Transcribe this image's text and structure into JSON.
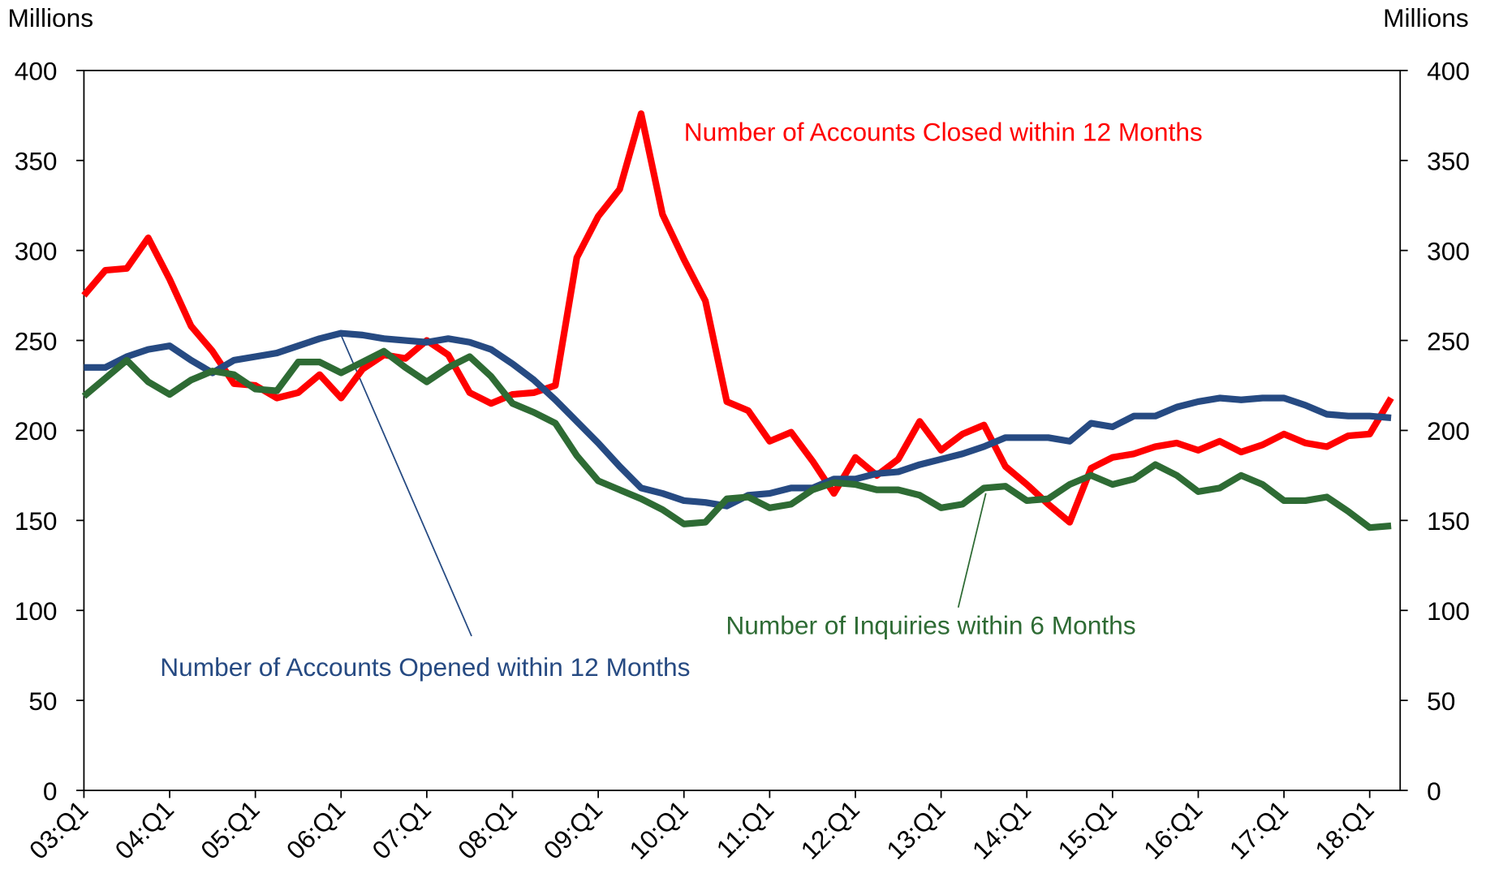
{
  "chart_data": {
    "type": "line",
    "ylabel": "Millions",
    "y2label": "Millions",
    "categories": [
      "03:Q1",
      null,
      null,
      null,
      "04:Q1",
      null,
      null,
      null,
      "05:Q1",
      null,
      null,
      null,
      "06:Q1",
      null,
      null,
      null,
      "07:Q1",
      null,
      null,
      null,
      "08:Q1",
      null,
      null,
      null,
      "09:Q1",
      null,
      null,
      null,
      "10:Q1",
      null,
      null,
      null,
      "11:Q1",
      null,
      null,
      null,
      "12:Q1",
      null,
      null,
      null,
      "13:Q1",
      null,
      null,
      null,
      "14:Q1",
      null,
      null,
      null,
      "15:Q1",
      null,
      null,
      null,
      "16:Q1",
      null,
      null,
      null,
      "17:Q1",
      null,
      null,
      null,
      "18:Q1",
      null
    ],
    "series": [
      {
        "name": "Number of Accounts Closed within 12 Months",
        "color": "#ff0000",
        "values": [
          275,
          289,
          290,
          307,
          284,
          258,
          244,
          226,
          225,
          218,
          221,
          231,
          218,
          234,
          242,
          240,
          250,
          242,
          221,
          215,
          220,
          221,
          225,
          296,
          319,
          334,
          376,
          320,
          295,
          272,
          216,
          211,
          194,
          199,
          183,
          165,
          185,
          175,
          184,
          205,
          189,
          198,
          203,
          180,
          170,
          159,
          149,
          179,
          185,
          187,
          191,
          193,
          189,
          194,
          188,
          192,
          198,
          193,
          191,
          197,
          198,
          218
        ]
      },
      {
        "name": "Number of Accounts Opened within 12 Months",
        "color": "#264a82",
        "values": [
          235,
          235,
          241,
          245,
          247,
          239,
          232,
          239,
          241,
          243,
          247,
          251,
          254,
          253,
          251,
          250,
          249,
          251,
          249,
          245,
          237,
          228,
          217,
          205,
          193,
          180,
          168,
          165,
          161,
          160,
          158,
          164,
          165,
          168,
          168,
          173,
          173,
          176,
          177,
          181,
          184,
          187,
          191,
          196,
          196,
          196,
          194,
          204,
          202,
          208,
          208,
          213,
          216,
          218,
          217,
          218,
          218,
          214,
          209,
          208,
          208,
          207
        ]
      },
      {
        "name": "Number of Inquiries within 6 Months",
        "color": "#2e6b34",
        "values": [
          219,
          229,
          239,
          227,
          220,
          228,
          233,
          231,
          223,
          222,
          238,
          238,
          232,
          238,
          244,
          235,
          227,
          235,
          241,
          230,
          215,
          210,
          204,
          186,
          172,
          167,
          162,
          156,
          148,
          149,
          162,
          163,
          157,
          159,
          167,
          171,
          170,
          167,
          167,
          164,
          157,
          159,
          168,
          169,
          161,
          162,
          170,
          175,
          170,
          173,
          181,
          175,
          166,
          168,
          175,
          170,
          161,
          161,
          163,
          155,
          146,
          147
        ]
      }
    ],
    "ylim": [
      0,
      400
    ],
    "yticks": [
      0,
      50,
      100,
      150,
      200,
      250,
      300,
      350,
      400
    ],
    "y2lim": [
      0,
      400
    ],
    "y2ticks": [
      0,
      50,
      100,
      150,
      200,
      250,
      300,
      350,
      400
    ],
    "grid": false
  }
}
